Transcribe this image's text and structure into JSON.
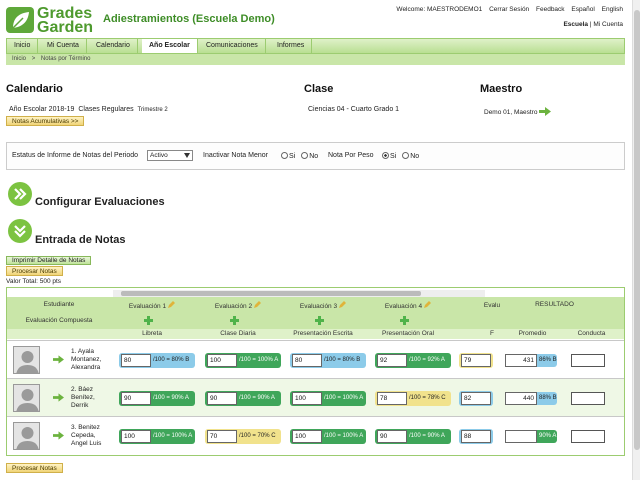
{
  "logo": {
    "line1": "Grades",
    "line2": "Garden"
  },
  "app_title": "Adiestramientos (Escuela Demo)",
  "topnav": {
    "welcome": "Welcome: MAESTRODEMO1",
    "logout": "Cerrar Sesión",
    "feedback": "Feedback",
    "espanol": "Español",
    "english": "English"
  },
  "usermenu": {
    "school": "Escuela",
    "sep": "|",
    "account": "Mi Cuenta"
  },
  "tabs": [
    "Inicio",
    "Mi Cuenta",
    "Calendario",
    "Año Escolar",
    "Comunicaciones",
    "Informes"
  ],
  "active_tab": "Año Escolar",
  "breadcrumb": {
    "home": "Inicio",
    "sep": ">",
    "current": "Notas por Término"
  },
  "calendario": {
    "heading": "Calendario",
    "year": "Año Escolar 2018-19",
    "classes": "Clases Regulares",
    "term": "Trimestre 2",
    "btn": "Notas Acumulativas >>"
  },
  "clase": {
    "heading": "Clase",
    "value": "Ciencias 04 -   Cuarto Grado  1"
  },
  "maestro": {
    "heading": "Maestro",
    "value": "Demo 01, Maestro"
  },
  "status": {
    "label": "Estatus de Informe de Notas del Periodo",
    "select": "Activo",
    "inactivar_label": "Inactivar Nota Menor",
    "si": "Si",
    "no": "No",
    "peso_label": "Nota Por Peso"
  },
  "sections": {
    "config": "Configurar Evaluaciones",
    "entrada": "Entrada de Notas"
  },
  "buttons": {
    "imprimir": "Imprimir Detalle de Notas",
    "procesar": "Procesar Notas",
    "procesar_bottom": "Procesar Notas"
  },
  "valor_total": "Valor Total: 500 pts",
  "grid": {
    "estudiante": "Estudiante",
    "evaluacion_compuesta": "Evaluación Compuesta",
    "resultado": "RESULTADO",
    "promedio": "Promedio",
    "conducta": "Conducta",
    "evaluaciones": [
      {
        "title": "Evaluación 1",
        "name": "Libreta"
      },
      {
        "title": "Evaluación 2",
        "name": "Clase Diaria"
      },
      {
        "title": "Evaluación 3",
        "name": "Presentación Escrita"
      },
      {
        "title": "Evaluación 4",
        "name": "Presentación Oral"
      },
      {
        "title": "Evalu",
        "name": "F"
      }
    ],
    "students": [
      {
        "name": "1. Ayala Montanez, Alexandra",
        "grades": [
          {
            "val": "80",
            "txt": "/100 = 80% B",
            "color": "blue"
          },
          {
            "val": "100",
            "txt": "/100 = 100% A",
            "color": "green"
          },
          {
            "val": "80",
            "txt": "/100 = 80% B",
            "color": "blue"
          },
          {
            "val": "92",
            "txt": "/100 = 92% A",
            "color": "green"
          },
          {
            "val": "79",
            "txt": "",
            "color": "yellow"
          }
        ],
        "promedio": "431",
        "pct": "86% B",
        "pcolor": "blue"
      },
      {
        "name": "2. Báez Benítez, Derrik",
        "grades": [
          {
            "val": "90",
            "txt": "/100 = 90% A",
            "color": "green"
          },
          {
            "val": "90",
            "txt": "/100 = 90% A",
            "color": "green"
          },
          {
            "val": "100",
            "txt": "/100 = 100% A",
            "color": "green"
          },
          {
            "val": "78",
            "txt": "/100 = 78% C",
            "color": "yellow"
          },
          {
            "val": "82",
            "txt": "",
            "color": "blue"
          }
        ],
        "promedio": "440",
        "pct": "88% B",
        "pcolor": "blue"
      },
      {
        "name": "3. Benitez Cepeda, Angel Luis",
        "grades": [
          {
            "val": "100",
            "txt": "/100 = 100% A",
            "color": "green"
          },
          {
            "val": "70",
            "txt": "/100 = 70% C",
            "color": "yellow"
          },
          {
            "val": "100",
            "txt": "/100 = 100% A",
            "color": "green"
          },
          {
            "val": "90",
            "txt": "/100 = 90% A",
            "color": "green"
          },
          {
            "val": "88",
            "txt": "",
            "color": "blue"
          }
        ],
        "promedio": "448",
        "pct": "90% A",
        "pcolor": "green"
      }
    ]
  },
  "colors": {
    "brand": "#4e9a2e",
    "header": "#c9e6a8",
    "grade_green": "#3fa65a",
    "grade_blue": "#8ccbe9",
    "grade_yellow": "#f1e28c"
  },
  "icons": [
    "leaf-logo-icon",
    "pencil-icon",
    "plus-icon",
    "arrow-right-icon",
    "chevron-down-icon",
    "avatar-icon"
  ]
}
